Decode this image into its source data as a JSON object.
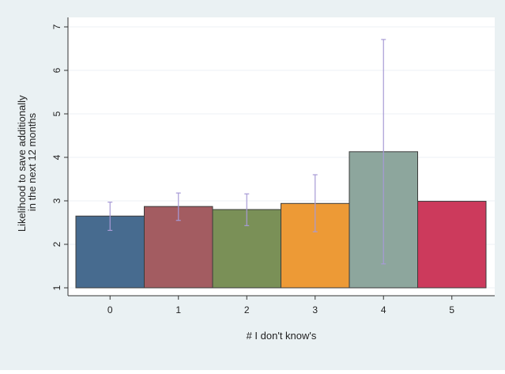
{
  "chart_data": {
    "type": "bar",
    "xlabel": "# I don't know's",
    "ylabel_lines": [
      "Likelihood to save additionally",
      "in the next 12 months"
    ],
    "categories": [
      "0",
      "1",
      "2",
      "3",
      "4",
      "5"
    ],
    "values": [
      2.65,
      2.87,
      2.8,
      2.94,
      4.13,
      2.99
    ],
    "error_low": [
      2.32,
      2.55,
      2.43,
      2.29,
      1.55,
      null
    ],
    "error_high": [
      2.97,
      3.18,
      3.16,
      3.6,
      6.71,
      null
    ],
    "ylim": [
      1,
      7
    ],
    "yticks": [
      "1",
      "2",
      "3",
      "4",
      "5",
      "6",
      "7"
    ],
    "bar_base": 1,
    "grid": true,
    "legend": "none",
    "colors": {
      "bars": [
        "#476b8f",
        "#a35c61",
        "#7a9057",
        "#ed9a36",
        "#8da69d",
        "#cc3a5c"
      ],
      "bar_outline": "#3b3b3b",
      "error_bars": "#a79ad6",
      "plot_background": "#ffffff",
      "frame_background": "#eaf1f3",
      "gridline": "#eef2f4"
    }
  }
}
